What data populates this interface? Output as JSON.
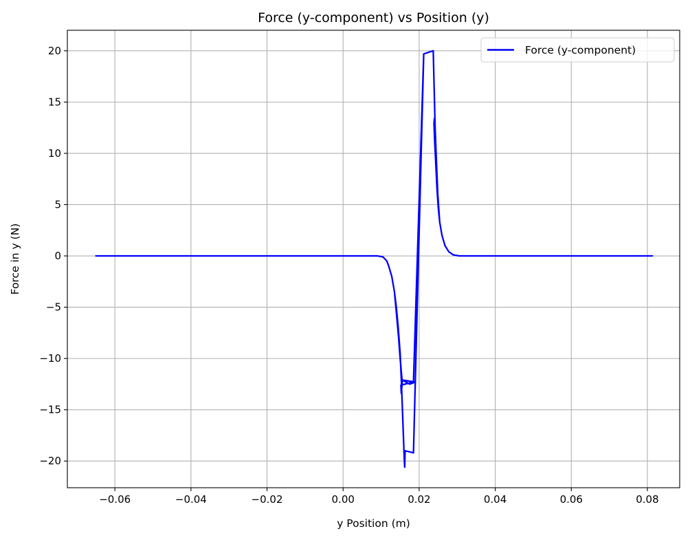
{
  "chart_data": {
    "type": "line",
    "title": "Force (y-component) vs Position (y)",
    "xlabel": "y Position (m)",
    "ylabel": "Force in y (N)",
    "xlim": [
      -0.0725,
      0.0885
    ],
    "ylim": [
      -22.6,
      22.0
    ],
    "xticks": [
      -0.06,
      -0.04,
      -0.02,
      0.0,
      0.02,
      0.04,
      0.06,
      0.08
    ],
    "xtick_labels": [
      "−0.06",
      "−0.04",
      "−0.02",
      "0.00",
      "0.02",
      "0.04",
      "0.06",
      "0.08"
    ],
    "yticks": [
      -20,
      -15,
      -10,
      -5,
      0,
      5,
      10,
      15,
      20
    ],
    "ytick_labels": [
      "−20",
      "−15",
      "−10",
      "−5",
      "0",
      "5",
      "10",
      "15",
      "20"
    ],
    "grid": true,
    "legend_position": "top-right",
    "series": [
      {
        "name": "Force (y-component)",
        "color": "#0000ff",
        "x": [
          -0.065,
          -0.04,
          -0.02,
          0.0,
          0.006,
          0.009,
          0.0105,
          0.0115,
          0.012,
          0.0128,
          0.0135,
          0.014,
          0.0145,
          0.015,
          0.0153,
          0.0156,
          0.0159,
          0.0161,
          0.0162,
          0.0163,
          0.0185,
          0.0212,
          0.0237,
          0.0239,
          0.0241,
          0.0243,
          0.0245,
          0.0247,
          0.025,
          0.0254,
          0.026,
          0.0268,
          0.0278,
          0.029,
          0.0305,
          0.035,
          0.05,
          0.07,
          0.0813,
          0.0813,
          0.07,
          0.05,
          0.035,
          0.0305,
          0.029,
          0.0278,
          0.0268,
          0.026,
          0.0254,
          0.0249,
          0.0244,
          0.0242,
          0.024,
          0.0239,
          0.0241,
          0.0243,
          0.0245,
          0.0247,
          0.025,
          0.0254,
          0.026,
          0.0268,
          0.0278,
          0.029,
          0.0305,
          0.035,
          0.05,
          0.05,
          0.035,
          0.0305,
          0.029,
          0.0278,
          0.0268,
          0.026,
          0.0254,
          0.025,
          0.0247,
          0.0245,
          0.0243,
          0.0241,
          0.0239,
          0.0237,
          0.0212,
          0.0185,
          0.0152,
          0.0153,
          0.0156,
          0.0175,
          0.019,
          0.0155,
          0.015,
          0.0146,
          0.014,
          0.0135,
          0.0128,
          0.012,
          0.0115,
          0.0105,
          0.009,
          0.006,
          0.0,
          -0.02,
          -0.04,
          -0.065
        ],
        "y": [
          0.0,
          0.0,
          0.0,
          0.0,
          0.0,
          0.0,
          -0.1,
          -0.5,
          -1.0,
          -2.0,
          -3.5,
          -5.0,
          -7.0,
          -9.5,
          -12.0,
          -15.0,
          -18.0,
          -20.0,
          -20.6,
          -19.0,
          -19.2,
          19.7,
          20.0,
          17.0,
          14.0,
          11.0,
          8.5,
          6.5,
          4.8,
          3.3,
          2.0,
          1.0,
          0.4,
          0.1,
          0.0,
          0.0,
          0.0,
          0.0,
          0.0,
          0.0,
          0.0,
          0.0,
          0.0,
          0.0,
          0.1,
          0.4,
          1.0,
          2.0,
          3.3,
          6.0,
          10.5,
          12.5,
          13.4,
          12.9,
          11.0,
          9.5,
          8.0,
          6.5,
          4.8,
          3.3,
          2.0,
          1.0,
          0.4,
          0.1,
          0.0,
          0.0,
          0.0,
          0.0,
          0.0,
          0.0,
          0.1,
          0.4,
          1.0,
          2.0,
          3.3,
          4.8,
          6.5,
          8.5,
          11.0,
          14.0,
          17.0,
          20.0,
          19.7,
          -12.3,
          -12.6,
          -13.4,
          -12.1,
          -12.5,
          -12.3,
          -12.1,
          -10.0,
          -8.0,
          -5.5,
          -3.5,
          -2.0,
          -1.0,
          -0.5,
          -0.1,
          0.0,
          0.0,
          0.0,
          0.0,
          0.0,
          0.0
        ]
      }
    ]
  }
}
